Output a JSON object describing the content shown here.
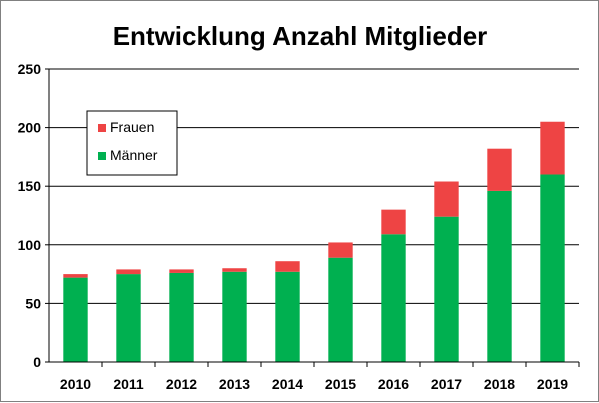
{
  "chart_data": {
    "type": "bar",
    "stacked": true,
    "title": "Entwicklung Anzahl Mitglieder",
    "xlabel": "",
    "ylabel": "",
    "categories": [
      "2010",
      "2011",
      "2012",
      "2013",
      "2014",
      "2015",
      "2016",
      "2017",
      "2018",
      "2019"
    ],
    "series": [
      {
        "name": "Männer",
        "color": "#00B050",
        "values": [
          72,
          75,
          76,
          77,
          77,
          89,
          109,
          124,
          146,
          160
        ]
      },
      {
        "name": "Frauen",
        "color": "#EE4444",
        "values": [
          3,
          4,
          3,
          3,
          9,
          13,
          21,
          30,
          36,
          45
        ]
      }
    ],
    "ylim": [
      0,
      250
    ],
    "yticks": [
      0,
      50,
      100,
      150,
      200,
      250
    ],
    "grid": true,
    "legend": "top-left"
  }
}
